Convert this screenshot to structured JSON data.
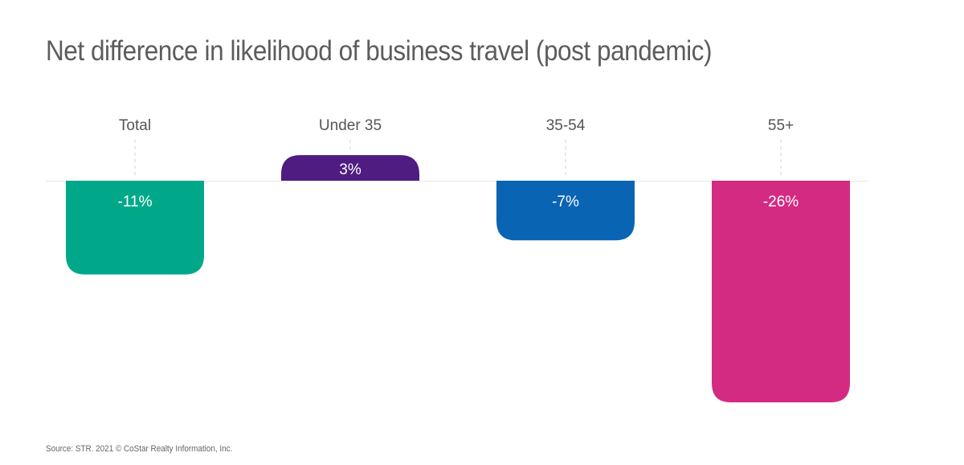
{
  "title": "Net difference in likelihood of business travel (post pandemic)",
  "source": "Source: STR. 2021 © CoStar Realty Information, Inc.",
  "chart_data": {
    "type": "bar",
    "title": "Net difference in likelihood of business travel (post pandemic)",
    "categories": [
      "Total",
      "Under 35",
      "35-54",
      "55+"
    ],
    "values": [
      -11,
      3,
      -7,
      -26
    ],
    "value_labels": [
      "-11%",
      "3%",
      "-7%",
      "-26%"
    ],
    "colors": [
      "#00a88a",
      "#4f1c82",
      "#0a64b4",
      "#d42b82"
    ],
    "xlabel": "",
    "ylabel": "",
    "grid": false,
    "legend": "none"
  }
}
